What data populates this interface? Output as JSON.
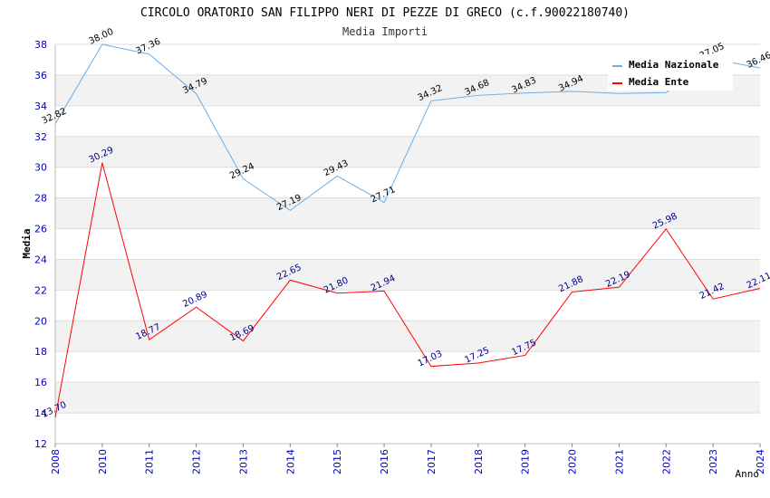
{
  "chart_data": {
    "type": "line",
    "title": "CIRCOLO ORATORIO SAN FILIPPO NERI DI PEZZE DI GRECO (c.f.90022180740)",
    "subtitle": "Media Importi",
    "ylabel": "Media",
    "xlabel": "Anno",
    "ylim": [
      12,
      38
    ],
    "yticks": [
      12,
      14,
      16,
      18,
      20,
      22,
      24,
      26,
      28,
      30,
      32,
      34,
      36,
      38
    ],
    "categories": [
      "2008",
      "2010",
      "2011",
      "2012",
      "2013",
      "2014",
      "2015",
      "2016",
      "2017",
      "2018",
      "2019",
      "2020",
      "2021",
      "2022",
      "2023",
      "2024"
    ],
    "grid": "horizontal bands",
    "legend_position": "top-right",
    "series": [
      {
        "name": "Media Nazionale",
        "color": "#6aaee8",
        "values": [
          32.82,
          38.0,
          37.36,
          34.79,
          29.24,
          27.19,
          29.43,
          27.71,
          34.32,
          34.68,
          34.83,
          34.94,
          34.8,
          34.86,
          37.05,
          36.46
        ],
        "labels": [
          "32.82",
          "38.00",
          "37.36",
          "34.79",
          "29.24",
          "27.19",
          "29.43",
          "27.71",
          "34.32",
          "34.68",
          "34.83",
          "34.94",
          "",
          "",
          "37.05",
          "36.46"
        ]
      },
      {
        "name": "Media Ente",
        "color": "#ff0000",
        "values": [
          13.7,
          30.29,
          18.77,
          20.89,
          18.69,
          22.65,
          21.8,
          21.94,
          17.03,
          17.25,
          17.75,
          21.88,
          22.19,
          25.98,
          21.42,
          22.11
        ],
        "labels": [
          "13.70",
          "30.29",
          "18.77",
          "20.89",
          "18.69",
          "22.65",
          "21.80",
          "21.94",
          "17.03",
          "17.25",
          "17.75",
          "21.88",
          "22.19",
          "25.98",
          "21.42",
          "22.11"
        ]
      }
    ]
  }
}
